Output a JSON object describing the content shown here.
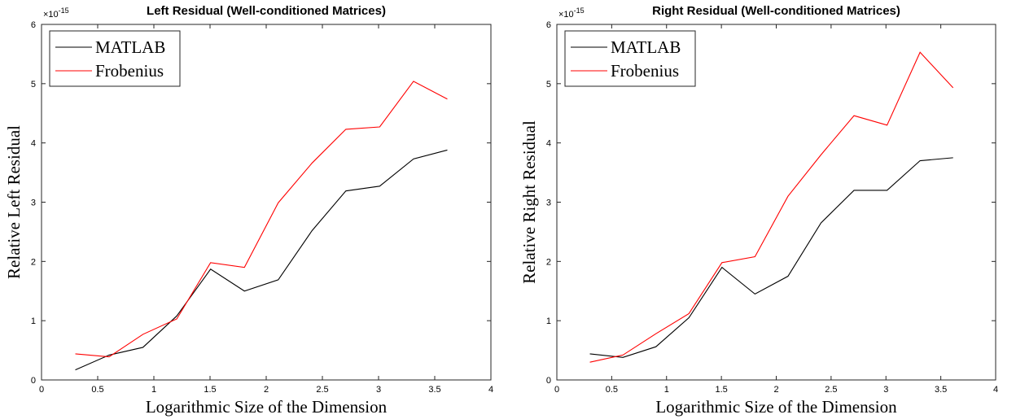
{
  "chart_data": [
    {
      "type": "line",
      "title": "Left Residual (Well-conditioned Matrices)",
      "xlabel": "Logarithmic Size of the Dimension",
      "ylabel": "Relative Left Residual",
      "y_exponent_base": "×10",
      "y_exponent_power": "-15",
      "xlim": [
        0,
        4
      ],
      "ylim": [
        0,
        6
      ],
      "xticks": [
        "0",
        "0.5",
        "1",
        "1.5",
        "2",
        "2.5",
        "3",
        "3.5",
        "4"
      ],
      "yticks": [
        "0",
        "1",
        "2",
        "3",
        "4",
        "5",
        "6"
      ],
      "grid": false,
      "legend_position": "top-left",
      "x": [
        0.301,
        0.602,
        0.903,
        1.204,
        1.505,
        1.806,
        2.107,
        2.408,
        2.709,
        3.01,
        3.311,
        3.612
      ],
      "series": [
        {
          "name": "MATLAB",
          "color": "#000000",
          "values": [
            0.17,
            0.42,
            0.55,
            1.08,
            1.87,
            1.5,
            1.69,
            2.52,
            3.19,
            3.27,
            3.73,
            3.88
          ]
        },
        {
          "name": "Frobenius",
          "color": "#ff0000",
          "values": [
            0.44,
            0.39,
            0.77,
            1.03,
            1.98,
            1.9,
            2.99,
            3.66,
            4.23,
            4.27,
            5.04,
            4.74
          ]
        }
      ]
    },
    {
      "type": "line",
      "title": "Right Residual (Well-conditioned Matrices)",
      "xlabel": "Logarithmic Size of the Dimension",
      "ylabel": "Relative Right Residual",
      "y_exponent_base": "×10",
      "y_exponent_power": "-15",
      "xlim": [
        0,
        4
      ],
      "ylim": [
        0,
        6
      ],
      "xticks": [
        "0",
        "0.5",
        "1",
        "1.5",
        "2",
        "2.5",
        "3",
        "3.5",
        "4"
      ],
      "yticks": [
        "0",
        "1",
        "2",
        "3",
        "4",
        "5",
        "6"
      ],
      "grid": false,
      "legend_position": "top-left",
      "x": [
        0.301,
        0.602,
        0.903,
        1.204,
        1.505,
        1.806,
        2.107,
        2.408,
        2.709,
        3.01,
        3.311,
        3.612
      ],
      "series": [
        {
          "name": "MATLAB",
          "color": "#000000",
          "values": [
            0.44,
            0.38,
            0.56,
            1.05,
            1.9,
            1.45,
            1.75,
            2.65,
            3.2,
            3.2,
            3.7,
            3.75
          ]
        },
        {
          "name": "Frobenius",
          "color": "#ff0000",
          "values": [
            0.3,
            0.42,
            0.78,
            1.12,
            1.98,
            2.08,
            3.1,
            3.8,
            4.46,
            4.3,
            5.53,
            4.93
          ]
        }
      ]
    }
  ]
}
